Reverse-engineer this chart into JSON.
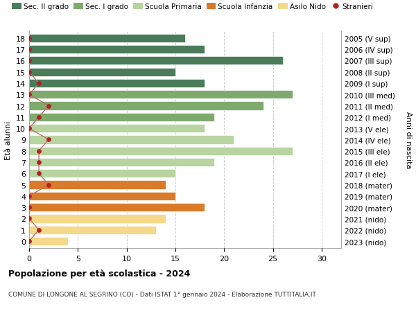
{
  "ages": [
    18,
    17,
    16,
    15,
    14,
    13,
    12,
    11,
    10,
    9,
    8,
    7,
    6,
    5,
    4,
    3,
    2,
    1,
    0
  ],
  "years": [
    "2005 (V sup)",
    "2006 (IV sup)",
    "2007 (III sup)",
    "2008 (II sup)",
    "2009 (I sup)",
    "2010 (III med)",
    "2011 (II med)",
    "2012 (I med)",
    "2013 (V ele)",
    "2014 (IV ele)",
    "2015 (III ele)",
    "2016 (II ele)",
    "2017 (I ele)",
    "2018 (mater)",
    "2019 (mater)",
    "2020 (mater)",
    "2021 (nido)",
    "2022 (nido)",
    "2023 (nido)"
  ],
  "bar_values": [
    16,
    18,
    26,
    15,
    18,
    27,
    24,
    19,
    18,
    21,
    27,
    19,
    15,
    14,
    15,
    18,
    14,
    13,
    4
  ],
  "stranieri_values": [
    0,
    0,
    0,
    0,
    1,
    0,
    2,
    1,
    0,
    2,
    1,
    1,
    1,
    2,
    0,
    0,
    0,
    1,
    0
  ],
  "bar_colors": [
    "#4a7c59",
    "#4a7c59",
    "#4a7c59",
    "#4a7c59",
    "#4a7c59",
    "#7faa6e",
    "#7faa6e",
    "#7faa6e",
    "#b8d4a0",
    "#b8d4a0",
    "#b8d4a0",
    "#b8d4a0",
    "#b8d4a0",
    "#d97b2b",
    "#d97b2b",
    "#d97b2b",
    "#f5d88a",
    "#f5d88a",
    "#f5d88a"
  ],
  "legend_labels": [
    "Sec. II grado",
    "Sec. I grado",
    "Scuola Primaria",
    "Scuola Infanzia",
    "Asilo Nido",
    "Stranieri"
  ],
  "legend_colors": [
    "#4a7c59",
    "#7faa6e",
    "#b8d4a0",
    "#d97b2b",
    "#f5d88a",
    "#b22222"
  ],
  "stranieri_color": "#b22222",
  "stranieri_line_color": "#c07070",
  "ylabel_left": "Età alunni",
  "ylabel_right": "Anni di nascita",
  "xlim": [
    0,
    32
  ],
  "xticks": [
    0,
    5,
    10,
    15,
    20,
    25,
    30
  ],
  "title": "Popolazione per età scolastica - 2024",
  "subtitle": "COMUNE DI LONGONE AL SEGRINO (CO) - Dati ISTAT 1° gennaio 2024 - Elaborazione TUTTITALIA.IT",
  "bg_color": "#ffffff",
  "grid_color": "#cccccc",
  "bar_height": 0.75
}
